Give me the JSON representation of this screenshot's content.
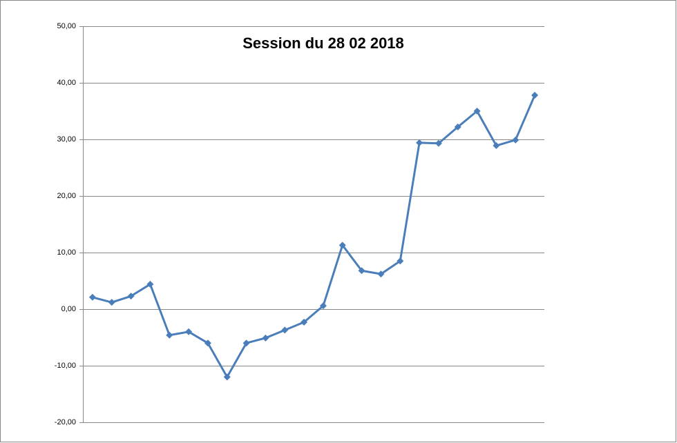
{
  "chart_data": {
    "type": "line",
    "title": "Session du 28 02 2018",
    "categories": [
      null,
      null,
      null,
      null,
      null,
      null,
      null,
      null,
      null,
      null,
      null,
      null,
      null,
      null,
      null,
      null,
      null,
      null,
      null,
      null,
      null,
      null,
      null,
      null
    ],
    "series": [
      {
        "color": "#4a7ebb",
        "values": [
          2.1,
          1.2,
          2.3,
          4.4,
          -4.6,
          -4.0,
          -6.0,
          -12.0,
          -6.0,
          -5.1,
          -3.7,
          -2.3,
          0.6,
          11.3,
          6.8,
          6.2,
          8.5,
          29.4,
          29.3,
          32.2,
          35.0,
          28.9,
          29.9,
          37.8
        ]
      }
    ],
    "ylim": [
      -20,
      50
    ],
    "yticks": [
      {
        "value": -20,
        "label": "-20,00"
      },
      {
        "value": -10,
        "label": "-10,00"
      },
      {
        "value": 0,
        "label": "0,00"
      },
      {
        "value": 10,
        "label": "10,00"
      },
      {
        "value": 20,
        "label": "20,00"
      },
      {
        "value": 30,
        "label": "30,00"
      },
      {
        "value": 40,
        "label": "40,00"
      },
      {
        "value": 50,
        "label": "50,00"
      }
    ],
    "grid": true
  }
}
